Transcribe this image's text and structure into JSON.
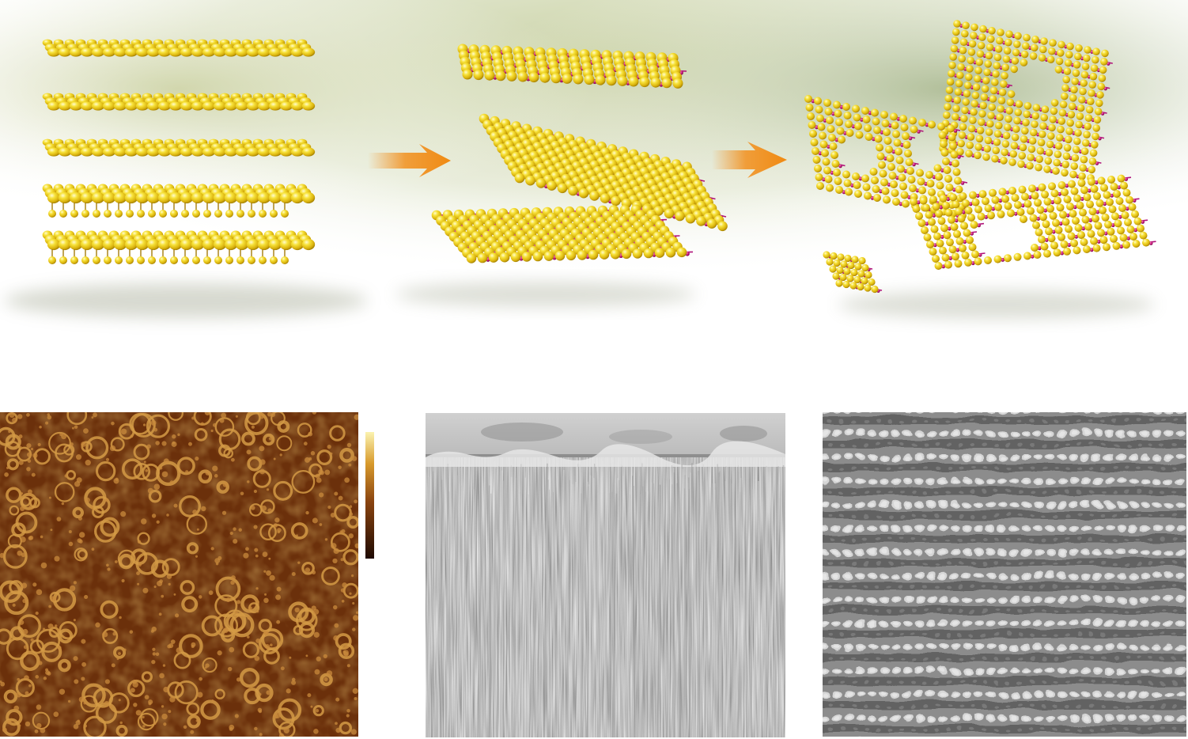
{
  "figure": {
    "top_row": {
      "stages": [
        {
          "name": "bulk-layered-crystal",
          "layers": 5
        },
        {
          "name": "exfoliated-nanosheets",
          "sheets": 3
        },
        {
          "name": "holey-nanosheets",
          "sheets": 3,
          "fragments": 1
        }
      ],
      "arrows": 2
    },
    "bottom_row": {
      "panels": [
        {
          "name": "afm-height-image",
          "has_colorbar": true
        },
        {
          "name": "sem-cross-section-image"
        },
        {
          "name": "tem-lattice-image"
        }
      ]
    },
    "colors": {
      "sulfur_atom": "#f2d21a",
      "sulfur_highlight": "#fff59a",
      "metal_atom": "#c2187a",
      "arrow": "#f2901e",
      "background_tint": "#c7d3a6",
      "afm_dark": "#2a1104",
      "afm_mid": "#7a3d0e",
      "afm_light": "#f6e89a",
      "sem_gray": "#8c8c8c",
      "tem_gray": "#9a9a9a"
    }
  }
}
